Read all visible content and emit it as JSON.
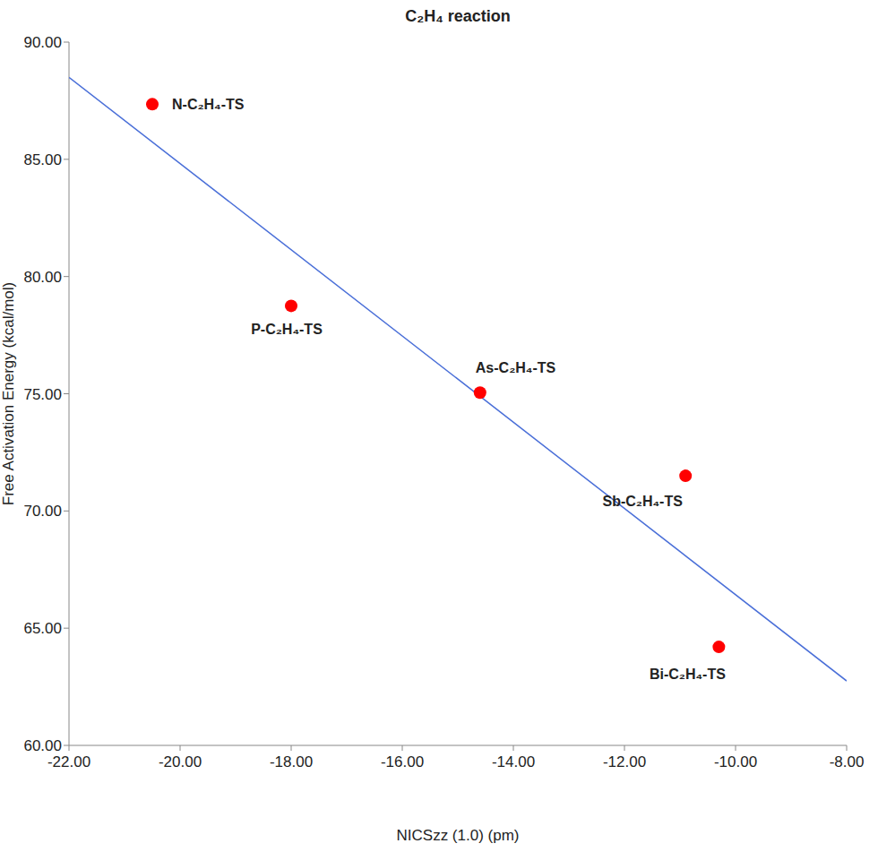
{
  "chart_data": {
    "type": "scatter",
    "title": "C₂H₄ reaction",
    "x_label": "NICSzz (1.0) (pm)",
    "y_label": "Free Activation Energy (kcal/mol)",
    "labels": [
      "N-C₂H₄-TS",
      "P-C₂H₄-TS",
      "As-C₂H₄-TS",
      "Sb-C₂H₄-TS",
      "Bi-C₂H₄-TS"
    ],
    "x": [
      -20.5,
      -18.0,
      -14.6,
      -10.9,
      -10.3
    ],
    "values": [
      87.35,
      78.75,
      75.05,
      71.5,
      64.2
    ],
    "color": "#ff0000",
    "marker": "circle",
    "trend_line": {
      "x": [
        -22,
        -8
      ],
      "values": [
        88.5,
        62.75
      ],
      "color": "#4a6fd8"
    },
    "xlim": [
      -22,
      -8
    ],
    "xticks": [
      {
        "value": -22,
        "label": "-22.00"
      },
      {
        "value": -20,
        "label": "-20.00"
      },
      {
        "value": -18,
        "label": "-18.00"
      },
      {
        "value": -16,
        "label": "-16.00"
      },
      {
        "value": -14,
        "label": "-14.00"
      },
      {
        "value": -12,
        "label": "-12.00"
      },
      {
        "value": -10,
        "label": "-10.00"
      },
      {
        "value": -8,
        "label": "-8.00"
      }
    ],
    "ylim": [
      60,
      90
    ],
    "yticks": [
      {
        "value": 60,
        "label": "60.00"
      },
      {
        "value": 65,
        "label": "65.00"
      },
      {
        "value": 70,
        "label": "70.00"
      },
      {
        "value": 75,
        "label": "75.00"
      },
      {
        "value": 80,
        "label": "80.00"
      },
      {
        "value": 85,
        "label": "85.00"
      },
      {
        "value": 90,
        "label": "90.00"
      }
    ],
    "grid": false
  }
}
